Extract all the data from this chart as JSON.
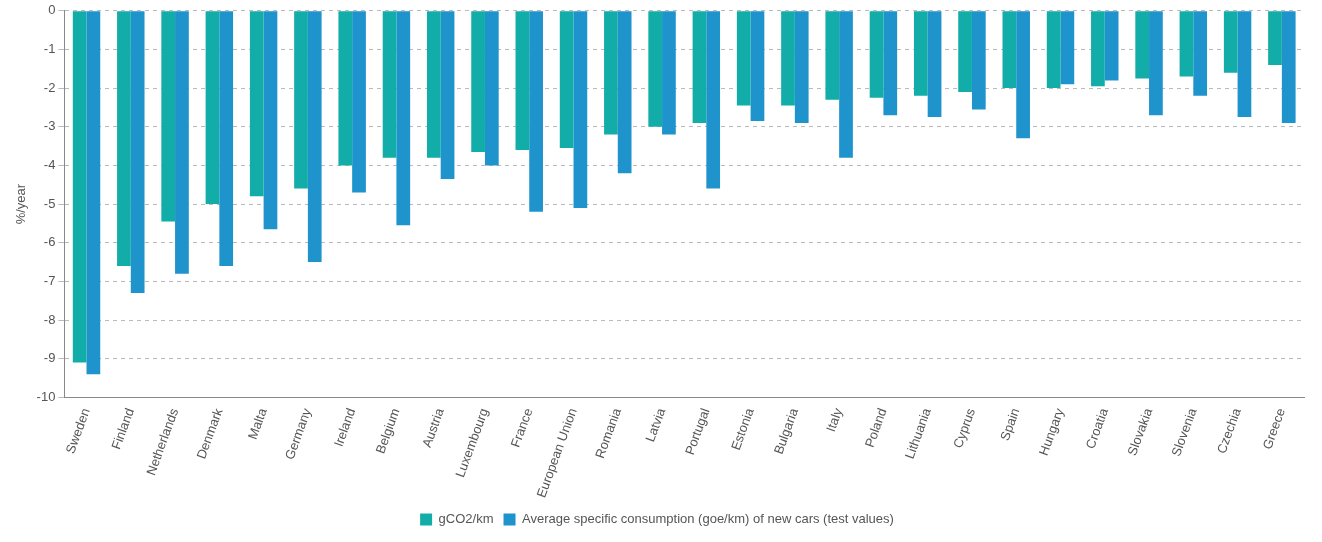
{
  "chart_data": {
    "type": "bar",
    "ylabel": "%/year",
    "categories": [
      "Sweden",
      "Finland",
      "Netherlands",
      "Denmark",
      "Malta",
      "Germany",
      "Ireland",
      "Belgium",
      "Austria",
      "Luxembourg",
      "France",
      "European Union",
      "Romania",
      "Latvia",
      "Portugal",
      "Estonia",
      "Bulgaria",
      "Italy",
      "Poland",
      "Lithuania",
      "Cyprus",
      "Spain",
      "Hungary",
      "Croatia",
      "Slovakia",
      "Slovenia",
      "Czechia",
      "Greece"
    ],
    "series": [
      {
        "name": "gCO2/km",
        "color": "#12ada8",
        "values": [
          -9.1,
          -6.6,
          -5.45,
          -5.0,
          -4.8,
          -4.6,
          -4.0,
          -3.8,
          -3.8,
          -3.65,
          -3.6,
          -3.55,
          -3.2,
          -3.0,
          -2.9,
          -2.45,
          -2.45,
          -2.3,
          -2.25,
          -2.2,
          -2.1,
          -2.0,
          -2.0,
          -1.95,
          -1.75,
          -1.7,
          -1.6,
          -1.4
        ]
      },
      {
        "name": "Average specific consumption (goe/km) of new cars (test values)",
        "color": "#1e93cc",
        "values": [
          -9.4,
          -7.3,
          -6.8,
          -6.6,
          -5.65,
          -6.5,
          -4.7,
          -5.55,
          -4.35,
          -4.0,
          -5.2,
          -5.1,
          -4.2,
          -3.2,
          -4.6,
          -2.85,
          -2.9,
          -3.8,
          -2.7,
          -2.75,
          -2.55,
          -3.3,
          -1.9,
          -1.8,
          -2.7,
          -2.2,
          -2.75,
          -2.9
        ]
      }
    ],
    "ylim": [
      -10,
      0
    ],
    "yticks": [
      -10,
      -9,
      -8,
      -7,
      -6,
      -5,
      -4,
      -3,
      -2,
      -1,
      0
    ],
    "grid": "y",
    "legend": "bottom"
  }
}
